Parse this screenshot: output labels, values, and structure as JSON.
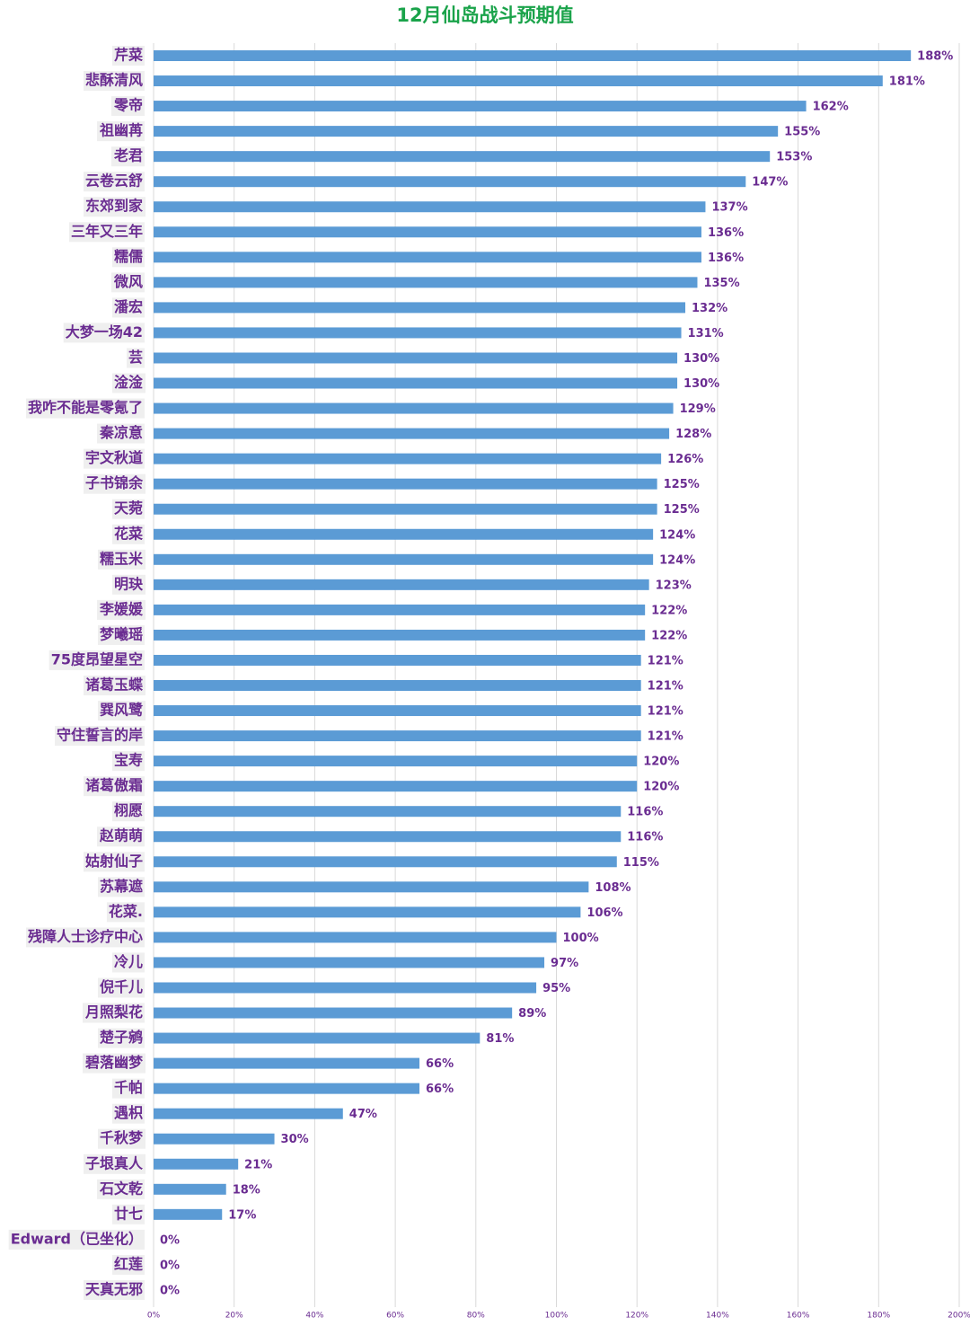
{
  "chart_data": {
    "type": "bar",
    "orientation": "horizontal",
    "title": "12月仙岛战斗预期值",
    "title_color": "#1aa34a",
    "label_color": "#6a2c91",
    "categories": [
      "芹菜",
      "悲酥清风",
      "零帝",
      "祖幽苒",
      "老君",
      "云卷云舒",
      "东郊到家",
      "三年又三年",
      "糯儒",
      "微风",
      "潘宏",
      "大梦一场42",
      "芸",
      "淦淦",
      "我咋不能是零氪了",
      "秦凉意",
      "宇文秋道",
      "子书锦余",
      "天菀",
      "花菜",
      "糯玉米",
      "明玦",
      "李媛媛",
      "梦曦瑶",
      "75度昂望星空",
      "诸葛玉蝶",
      "巽风鹭",
      "守住誓言的岸",
      "宝寿",
      "诸葛傲霜",
      "栩愿",
      "赵萌萌",
      "姑射仙子",
      "苏幕遮",
      "花菜.",
      "残障人士诊疗中心",
      "冷儿",
      "倪千儿",
      "月照梨花",
      "楚子鹓",
      "碧落幽梦",
      "千帕",
      "遇枳",
      "千秋梦",
      "子垠真人",
      "石文乾",
      "廿七",
      "Edward（已坐化）",
      "红莲",
      "天真无邪"
    ],
    "values": [
      188,
      181,
      162,
      155,
      153,
      147,
      137,
      136,
      136,
      135,
      132,
      131,
      130,
      130,
      129,
      128,
      126,
      125,
      125,
      124,
      124,
      123,
      122,
      122,
      121,
      121,
      121,
      121,
      120,
      120,
      116,
      116,
      115,
      108,
      106,
      100,
      97,
      95,
      89,
      81,
      66,
      66,
      47,
      30,
      21,
      18,
      17,
      0,
      0,
      0
    ],
    "value_labels": [
      "188%",
      "181%",
      "162%",
      "155%",
      "153%",
      "147%",
      "137%",
      "136%",
      "136%",
      "135%",
      "132%",
      "131%",
      "130%",
      "130%",
      "129%",
      "128%",
      "126%",
      "125%",
      "125%",
      "124%",
      "124%",
      "123%",
      "122%",
      "122%",
      "121%",
      "121%",
      "121%",
      "121%",
      "120%",
      "120%",
      "116%",
      "116%",
      "115%",
      "108%",
      "106%",
      "100%",
      "97%",
      "95%",
      "89%",
      "81%",
      "66%",
      "66%",
      "47%",
      "30%",
      "21%",
      "18%",
      "17%",
      "0%",
      "0%",
      "0%"
    ],
    "color": "#5b9bd5",
    "xlim": [
      0,
      200
    ],
    "xticks": [
      {
        "value": 0,
        "label": "0%"
      },
      {
        "value": 20,
        "label": "20%"
      },
      {
        "value": 40,
        "label": "40%"
      },
      {
        "value": 60,
        "label": "60%"
      },
      {
        "value": 80,
        "label": "80%"
      },
      {
        "value": 100,
        "label": "100%"
      },
      {
        "value": 120,
        "label": "120%"
      },
      {
        "value": 140,
        "label": "140%"
      },
      {
        "value": 160,
        "label": "160%"
      },
      {
        "value": 180,
        "label": "180%"
      },
      {
        "value": 200,
        "label": "200%"
      }
    ],
    "grid": true
  }
}
